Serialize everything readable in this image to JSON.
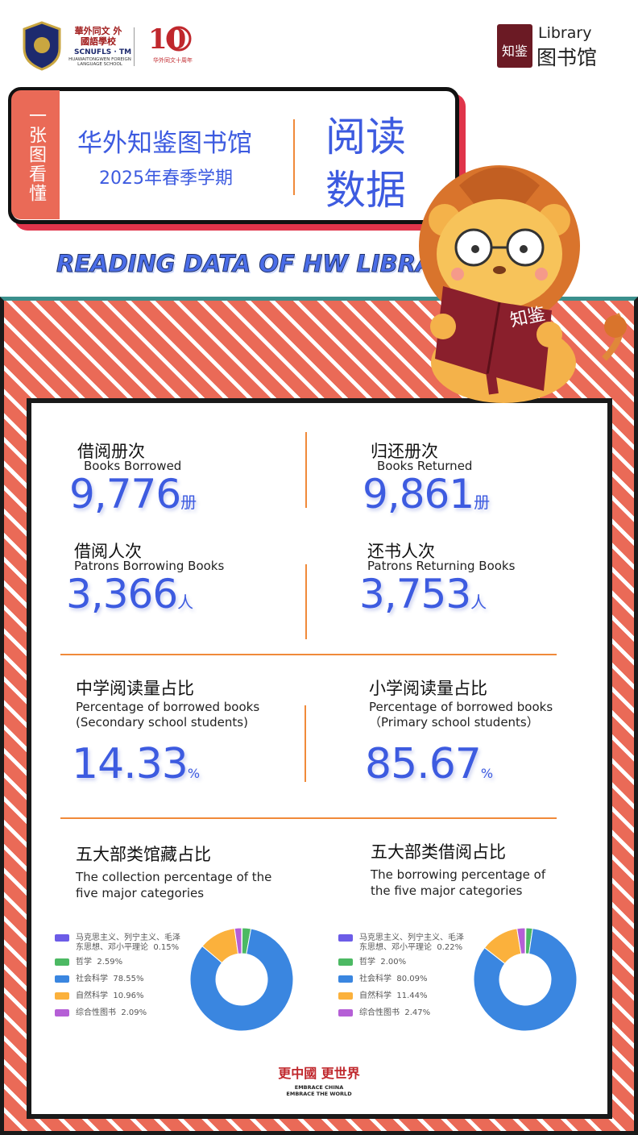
{
  "header": {
    "school_cn": "華外同文 外國語學校",
    "school_en_short": "SCNUFLS · TM",
    "school_en": "HUAWAITONGWEN FOREIGN LANGUAGE SCHOOL",
    "anniversary": "华外同文十周年",
    "library_en": "Library",
    "library_cn": "图书馆",
    "logo_mark": "知鉴"
  },
  "banner": {
    "tag": "一张图看懂",
    "title": "华外知鉴图书馆",
    "subtitle": "2025年春季学期",
    "big": [
      "阅读",
      "数据"
    ],
    "english": "READING DATA OF HW LIBRARY"
  },
  "stats": [
    {
      "label_cn": "借阅册次",
      "label_en": "Books Borrowed",
      "value": "9,776",
      "unit": "册"
    },
    {
      "label_cn": "归还册次",
      "label_en": "Books Returned",
      "value": "9,861",
      "unit": "册"
    },
    {
      "label_cn": "借阅人次",
      "label_en": "Patrons Borrowing Books",
      "value": "3,366",
      "unit": "人"
    },
    {
      "label_cn": "还书人次",
      "label_en": "Patrons Returning Books",
      "value": "3,753",
      "unit": "人"
    }
  ],
  "shares": [
    {
      "label_cn": "中学阅读量占比",
      "label_en": [
        "Percentage of borrowed books",
        "(Secondary school students)"
      ],
      "value": "14.33",
      "unit": "%"
    },
    {
      "label_cn": "小学阅读量占比",
      "label_en": [
        "Percentage of borrowed books",
        "（Primary school  students）"
      ],
      "value": "85.67",
      "unit": "%"
    }
  ],
  "charts": [
    {
      "type": "pie",
      "title": "五大部类馆藏占比",
      "subtitle": [
        "The collection percentage of the",
        " five major categories"
      ],
      "categories": [
        "马克思主义、列宁主义、毛泽东思想、邓小平理论",
        "哲学",
        "社会科学",
        "自然科学",
        "综合性图书"
      ],
      "values": [
        0.15,
        2.59,
        78.55,
        10.96,
        2.09
      ],
      "value_labels": [
        "0.15%",
        "2.59%",
        "78.55%",
        "10.96%",
        "2.09%"
      ],
      "colors": [
        "#6c5ce7",
        "#4cb963",
        "#3a86e0",
        "#fbb13c",
        "#b55fd6"
      ]
    },
    {
      "type": "pie",
      "title": "五大部类借阅占比",
      "subtitle": [
        "The borrowing percentage of",
        "the five major categories"
      ],
      "categories": [
        "马克思主义、列宁主义、毛泽东思想、邓小平理论",
        "哲学",
        "社会科学",
        "自然科学",
        "综合性图书"
      ],
      "values": [
        0.22,
        2.0,
        80.09,
        11.44,
        2.47
      ],
      "value_labels": [
        "0.22%",
        "2.00%",
        "80.09%",
        "11.44%",
        "2.47%"
      ],
      "colors": [
        "#6c5ce7",
        "#4cb963",
        "#3a86e0",
        "#fbb13c",
        "#b55fd6"
      ]
    }
  ],
  "footer": {
    "slogan": "更中國 更世界",
    "en": [
      "EMBRACE CHINA",
      "EMBRACE THE WORLD"
    ]
  }
}
